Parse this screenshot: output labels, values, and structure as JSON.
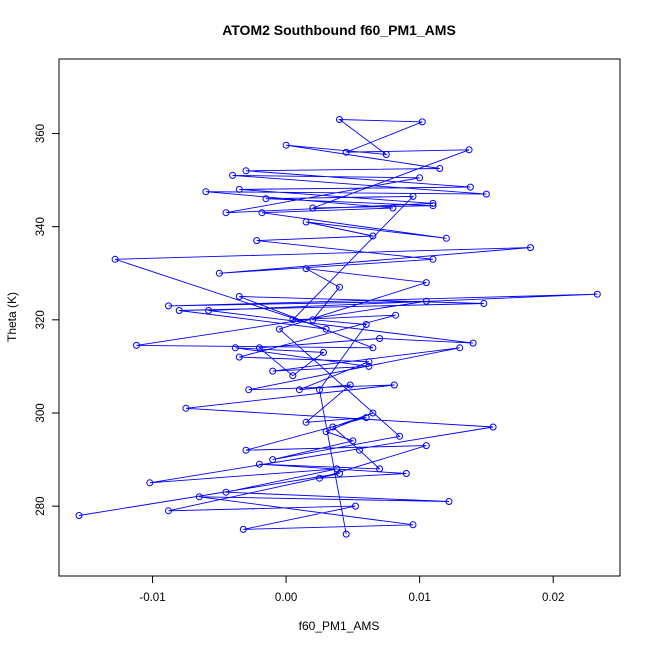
{
  "chart_data": {
    "type": "scatter",
    "title": "ATOM2 Southbound f60_PM1_AMS",
    "xlabel": "f60_PM1_AMS",
    "ylabel": "Theta (K)",
    "xlim": [
      -0.017,
      0.025
    ],
    "ylim": [
      265,
      376
    ],
    "xticks": [
      -0.01,
      0.0,
      0.01,
      0.02
    ],
    "xtick_labels": [
      "-0.01",
      "0.00",
      "0.01",
      "0.02"
    ],
    "yticks": [
      280,
      300,
      320,
      340,
      360
    ],
    "ytick_labels": [
      "280",
      "300",
      "320",
      "340",
      "360"
    ],
    "grid": false,
    "connected": true,
    "color": "#0000ff",
    "series": [
      {
        "x": [
          -0.0155,
          0.004,
          -0.0088,
          0.0052,
          -0.0032,
          0.0095,
          -0.0065,
          0.0122,
          -0.0045,
          0.0038,
          -0.0102,
          0.0155,
          -0.0075,
          0.0081,
          -0.0028,
          0.013,
          -0.001,
          0.0062,
          -0.0038,
          0.0028,
          0.0005,
          -0.002,
          0.007,
          0.014,
          -0.0058,
          0.0233,
          -0.0088,
          0.0105,
          -0.0112,
          0.0065,
          -0.0035,
          0.0148,
          -0.008,
          0.003,
          -0.0128,
          0.0183,
          -0.005,
          0.011,
          -0.0022,
          0.0065,
          0.0015,
          0.012,
          -0.0018,
          0.008,
          -0.006,
          0.015,
          -0.004,
          0.01,
          -0.0045,
          0.011,
          -0.0035,
          0.0138,
          -0.003,
          0.0115,
          0.0,
          0.0075,
          0.004,
          0.0102,
          0.0045,
          0.0137,
          0.002,
          0.011,
          -0.0015,
          0.0095,
          0.0005,
          0.0082,
          -0.0035,
          0.0062,
          0.001,
          0.0048,
          0.0015,
          0.006,
          -0.003,
          0.0105,
          0.0025,
          0.009,
          -0.002,
          0.007,
          0.0055,
          0.0035,
          0.0065,
          0.003,
          0.005,
          -0.001,
          0.0085,
          -0.0005,
          0.0105,
          0.0015,
          0.004,
          0.002,
          0.006,
          0.0025,
          0.0045
        ],
        "y": [
          278,
          287,
          279,
          280,
          275,
          276,
          282,
          281,
          283,
          288,
          285,
          297,
          301,
          306,
          305,
          314,
          309,
          310,
          314,
          313,
          308,
          314,
          316,
          315,
          322,
          325.5,
          323,
          324,
          314.5,
          314,
          325,
          323.5,
          322,
          318,
          333,
          335.5,
          330,
          333,
          337,
          338,
          341,
          337.5,
          343,
          344,
          347.5,
          347,
          351,
          350.5,
          343,
          345,
          348,
          348.5,
          352,
          352.5,
          357.5,
          355.5,
          363,
          362.5,
          356,
          356.5,
          344,
          344.5,
          346,
          346.5,
          320,
          321,
          312,
          311,
          305,
          306,
          298,
          299,
          292,
          293,
          286,
          287,
          289,
          288,
          292,
          297,
          300,
          296,
          294,
          290,
          295,
          318,
          328,
          331,
          327,
          320,
          319,
          305,
          274
        ]
      }
    ]
  }
}
